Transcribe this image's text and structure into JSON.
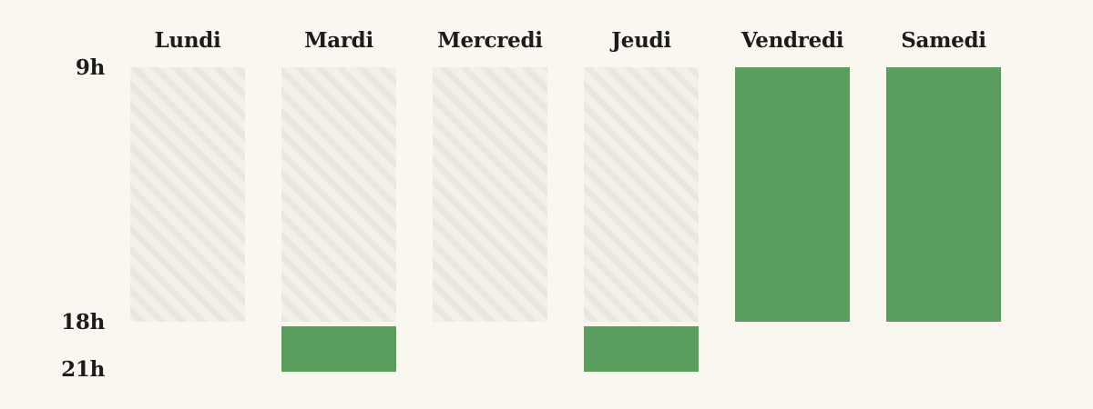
{
  "chart_data": {
    "type": "bar",
    "categories": [
      "Lundi",
      "Mardi",
      "Mercredi",
      "Jeudi",
      "Vendredi",
      "Samedi"
    ],
    "y_ticks": [
      {
        "label": "9h",
        "value": 9
      },
      {
        "label": "18h",
        "value": 18
      },
      {
        "label": "21h",
        "value": 21
      }
    ],
    "closed_hours": [
      {
        "day": "Lundi",
        "start": 9,
        "end": 18
      },
      {
        "day": "Mardi",
        "start": 9,
        "end": 18
      },
      {
        "day": "Mercredi",
        "start": 9,
        "end": 18
      },
      {
        "day": "Jeudi",
        "start": 9,
        "end": 18
      }
    ],
    "open_hours": [
      {
        "day": "Mardi",
        "start": 18,
        "end": 21
      },
      {
        "day": "Jeudi",
        "start": 18,
        "end": 21
      },
      {
        "day": "Vendredi",
        "start": 9,
        "end": 18
      },
      {
        "day": "Samedi",
        "start": 9,
        "end": 18
      }
    ],
    "colors": {
      "open": "#5a9e5e",
      "closed": "#f2f0e9",
      "closed_stripe": "#e9e7df",
      "background": "#faf7f0",
      "text": "#1c1c1c"
    },
    "grid": false,
    "legend": "none"
  }
}
